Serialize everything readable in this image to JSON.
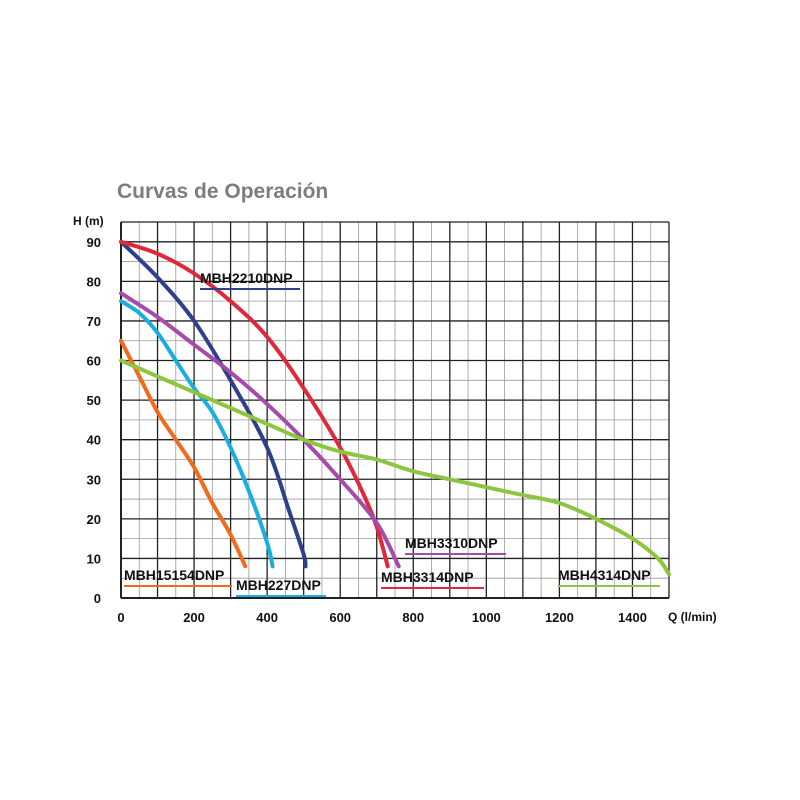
{
  "chart_data": {
    "type": "line",
    "title": "Curvas de Operación",
    "xlabel": "Q (l/min)",
    "ylabel": "H (m)",
    "xlim": [
      0,
      1500
    ],
    "ylim": [
      0,
      90
    ],
    "x_ticks": [
      0,
      200,
      400,
      600,
      800,
      1000,
      1200,
      1400
    ],
    "y_ticks": [
      0,
      10,
      20,
      30,
      40,
      50,
      60,
      70,
      80,
      90
    ],
    "x_major_step": 100,
    "x_minor_step": 50,
    "y_major_step": 10,
    "y_minor_step": 5,
    "grid": true,
    "series": [
      {
        "name": "MBH2210DNP",
        "color": "#2e3f8c",
        "x": [
          0,
          100,
          200,
          300,
          400,
          460,
          500,
          505
        ],
        "y": [
          90,
          81,
          70,
          55,
          38,
          22,
          11,
          8
        ]
      },
      {
        "name": "MBH15154DNP",
        "color": "#f26a1b",
        "x": [
          0,
          50,
          100,
          150,
          200,
          250,
          300,
          340
        ],
        "y": [
          65,
          56,
          47,
          40,
          33,
          24,
          16,
          8
        ]
      },
      {
        "name": "MBH227DNP",
        "color": "#1aaee0",
        "x": [
          0,
          50,
          100,
          150,
          200,
          250,
          300,
          350,
          400,
          415
        ],
        "y": [
          75,
          72,
          67,
          60,
          53,
          47,
          38,
          27,
          14,
          8
        ]
      },
      {
        "name": "MBH3314DNP",
        "color": "#e0283a",
        "x": [
          0,
          100,
          200,
          300,
          400,
          500,
          600,
          660,
          700,
          730
        ],
        "y": [
          90,
          87,
          82,
          75,
          66,
          53,
          38,
          27,
          18,
          8
        ]
      },
      {
        "name": "MBH3310DNP",
        "color": "#a64aab",
        "x": [
          0,
          100,
          200,
          300,
          400,
          500,
          600,
          700,
          760
        ],
        "y": [
          77,
          71,
          64,
          57,
          49,
          40,
          30,
          19,
          8
        ]
      },
      {
        "name": "MBH4314DNP",
        "color": "#8cc63f",
        "x": [
          0,
          100,
          200,
          300,
          400,
          500,
          600,
          700,
          800,
          900,
          1000,
          1100,
          1200,
          1300,
          1400,
          1470,
          1500
        ],
        "y": [
          60,
          56,
          52,
          48,
          44,
          40,
          37,
          35,
          32,
          30,
          28,
          26,
          24,
          20,
          15,
          10,
          6
        ]
      }
    ],
    "labels": [
      {
        "text": "MBH2210DNP",
        "color": "#2e3f8c",
        "series": "MBH2210DNP"
      },
      {
        "text": "MBH15154DNP",
        "color": "#f26a1b",
        "series": "MBH15154DNP"
      },
      {
        "text": "MBH227DNP",
        "color": "#1aaee0",
        "series": "MBH227DNP"
      },
      {
        "text": "MBH3314DNP",
        "color": "#e0283a",
        "series": "MBH3314DNP"
      },
      {
        "text": "MBH3310DNP",
        "color": "#a64aab",
        "series": "MBH3310DNP"
      },
      {
        "text": "MBH4314DNP",
        "color": "#8cc63f",
        "series": "MBH4314DNP"
      }
    ]
  },
  "colors": {
    "title": "#7b7d80",
    "frame": "#222222",
    "grid_major": "#222222",
    "grid_minor": "#9a9a9a"
  }
}
